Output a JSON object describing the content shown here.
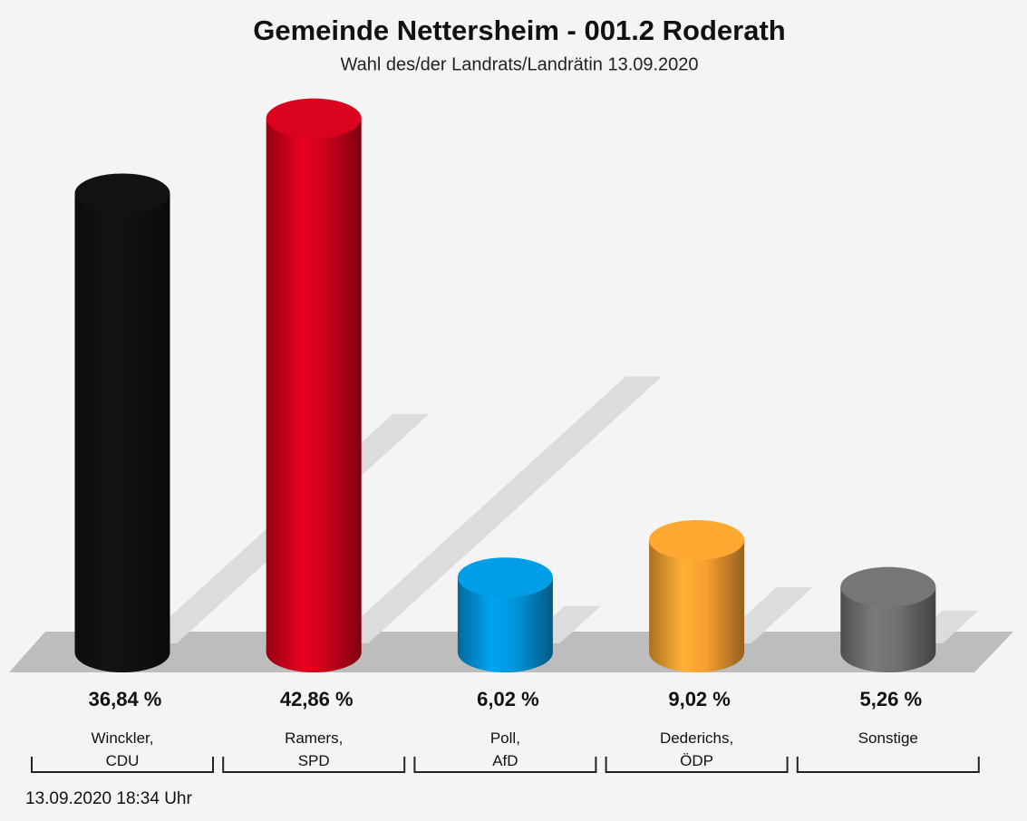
{
  "chart_data": {
    "type": "bar",
    "title": "Gemeinde Nettersheim - 001.2 Roderath",
    "subtitle": "Wahl des/der Landrats/Landrätin 13.09.2020",
    "categories": [
      "Winckler,\nCDU",
      "Ramers,\nSPD",
      "Poll,\nAfD",
      "Dederichs,\nÖDP",
      "Sonstige"
    ],
    "values": [
      36.84,
      42.86,
      6.02,
      9.02,
      5.26
    ],
    "value_labels": [
      "36,84 %",
      "42,86 %",
      "6,02 %",
      "9,02 %",
      "5,26 %"
    ],
    "colors": [
      "#111111",
      "#d0021b",
      "#0096dc",
      "#f7a030",
      "#707070"
    ],
    "footer": "13.09.2020 18:34 Uhr"
  }
}
